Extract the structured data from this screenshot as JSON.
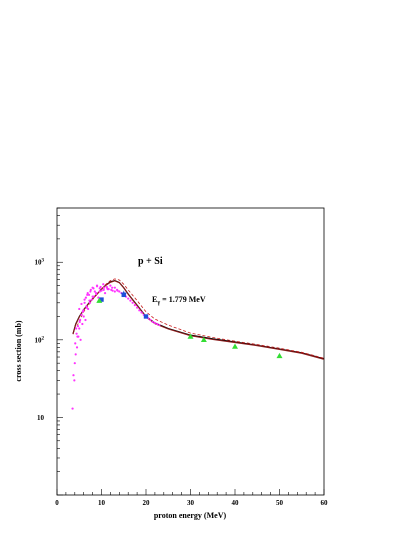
{
  "chart_data": {
    "type": "scatter",
    "title": "",
    "xlabel": "proton energy (MeV)",
    "ylabel": "cross section (mb)",
    "xlim": [
      0,
      60
    ],
    "ylim": [
      1,
      5000
    ],
    "yscale": "log",
    "grid": false,
    "x_ticks": [
      "0",
      "10",
      "20",
      "30",
      "40",
      "50",
      "60"
    ],
    "y_ticks": [
      {
        "value": 10,
        "base": "10",
        "exp": ""
      },
      {
        "value": 100,
        "base": "10",
        "exp": "2"
      },
      {
        "value": 1000,
        "base": "10",
        "exp": "3"
      }
    ],
    "annotations": [
      {
        "id": "reaction",
        "text": "p + Si"
      },
      {
        "id": "gamma_prefix",
        "text": "E"
      },
      {
        "id": "gamma_sub",
        "text": "γ"
      },
      {
        "id": "gamma_value",
        "text": " = 1.779 MeV"
      }
    ],
    "series": [
      {
        "kind": "line",
        "style": "solid",
        "color": "#000000",
        "x": [
          3.6,
          4.2,
          5,
          6,
          7,
          8,
          9,
          10,
          11,
          12,
          13,
          14,
          15,
          16,
          18,
          20,
          22,
          25,
          30,
          35,
          40,
          45,
          50,
          55,
          60
        ],
        "y": [
          120,
          160,
          200,
          245,
          290,
          340,
          390,
          450,
          510,
          560,
          580,
          550,
          470,
          390,
          280,
          200,
          165,
          140,
          115,
          103,
          94,
          85,
          76,
          68,
          57
        ]
      },
      {
        "kind": "line",
        "style": "solid",
        "color": "#8a1a1a",
        "x": [
          3.6,
          4.2,
          5,
          6,
          7,
          8,
          9,
          10,
          11,
          12,
          13,
          14,
          15,
          16,
          18,
          20,
          22,
          25,
          30,
          35,
          40,
          45,
          50,
          55,
          60
        ],
        "y": [
          118,
          157,
          197,
          242,
          287,
          337,
          386,
          446,
          505,
          552,
          574,
          545,
          466,
          386,
          277,
          197,
          162,
          138,
          113,
          101,
          92,
          84,
          75,
          67,
          56
        ]
      },
      {
        "kind": "line",
        "style": "dashed",
        "color": "#c81e1e",
        "x": [
          4.5,
          6,
          8,
          10,
          11,
          12,
          13,
          14,
          15,
          16,
          18,
          20,
          22,
          25,
          30,
          35,
          40,
          45,
          50,
          55,
          60
        ],
        "y": [
          150,
          230,
          330,
          450,
          520,
          580,
          610,
          590,
          520,
          440,
          320,
          230,
          185,
          155,
          122,
          107,
          96,
          87,
          78,
          69,
          58
        ]
      },
      {
        "kind": "markers",
        "marker": "dot",
        "color": "#ff33ff",
        "x": [
          3.5,
          3.7,
          3.9,
          4.0,
          4.1,
          4.2,
          4.4,
          4.5,
          4.7,
          4.8,
          5.0,
          5.2,
          5.3,
          5.5,
          5.7,
          5.9,
          6.0,
          6.2,
          6.4,
          6.5,
          6.7,
          6.9,
          7.0,
          7.2,
          7.4,
          7.6,
          7.8,
          8.0,
          8.2,
          8.5,
          8.8,
          9.0,
          9.3,
          9.6,
          10.0,
          10.4,
          10.8,
          11.2,
          11.6,
          12.0,
          12.5,
          13.0,
          13.5,
          14.0,
          14.5,
          15.0,
          15.5,
          16.0,
          16.5,
          17.0,
          17.5,
          18.0,
          18.5,
          19.0,
          19.5,
          20.0,
          20.5,
          21.0,
          21.5,
          22.0,
          22.5,
          23.0,
          5.0,
          5.5,
          6.2,
          6.8,
          7.5,
          8.2,
          9.0,
          9.8,
          10.6,
          11.4,
          12.2,
          13.0,
          4.3,
          4.6,
          5.1,
          5.8,
          6.6,
          7.3,
          8.0,
          8.8,
          9.6,
          10.5,
          11.3,
          12.4,
          13.6,
          15.2
        ],
        "y": [
          13,
          35,
          30,
          50,
          90,
          65,
          120,
          80,
          150,
          110,
          140,
          180,
          100,
          210,
          160,
          240,
          200,
          300,
          180,
          350,
          260,
          400,
          250,
          380,
          300,
          440,
          330,
          470,
          360,
          420,
          390,
          500,
          350,
          460,
          430,
          520,
          400,
          480,
          450,
          500,
          430,
          470,
          440,
          420,
          400,
          390,
          360,
          340,
          320,
          300,
          280,
          260,
          240,
          225,
          210,
          200,
          190,
          180,
          170,
          165,
          160,
          155,
          250,
          290,
          330,
          380,
          420,
          460,
          490,
          480,
          470,
          450,
          440,
          420,
          140,
          110,
          170,
          230,
          270,
          320,
          360,
          400,
          420,
          440,
          460,
          470,
          430,
          380
        ]
      },
      {
        "kind": "markers",
        "marker": "square",
        "color": "#1f4fd8",
        "x": [
          10,
          15,
          20
        ],
        "y": [
          330,
          380,
          200
        ]
      },
      {
        "kind": "markers",
        "marker": "star",
        "color": "#1f4fd8",
        "x": [
          15.0
        ],
        "y": [
          390
        ]
      },
      {
        "kind": "markers",
        "marker": "triangle",
        "color": "#33dd33",
        "x": [
          9.5,
          30,
          33,
          40,
          50
        ],
        "y": [
          320,
          110,
          100,
          82,
          62
        ]
      }
    ]
  }
}
